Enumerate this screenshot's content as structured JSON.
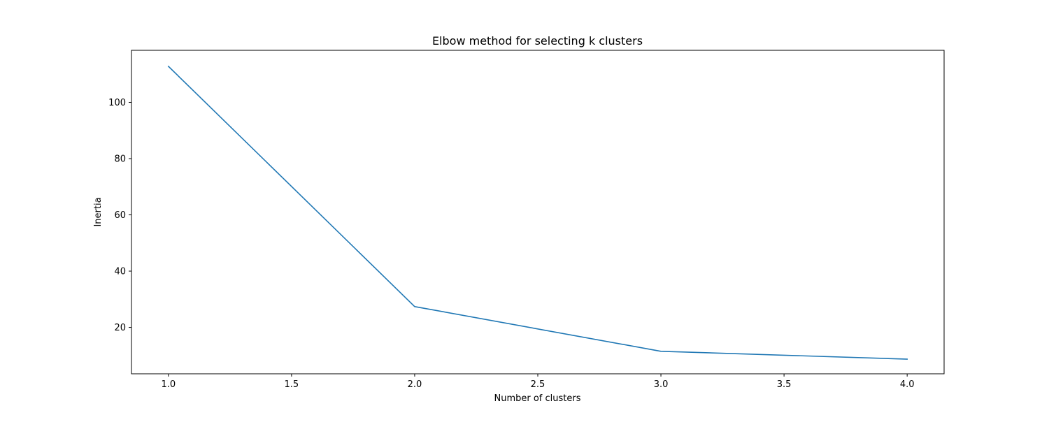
{
  "chart_data": {
    "type": "line",
    "title": "Elbow method for selecting k clusters",
    "xlabel": "Number of clusters",
    "ylabel": "Inertia",
    "x": [
      1,
      2,
      3,
      4
    ],
    "series": [
      {
        "values": [
          112.8,
          27.4,
          11.5,
          8.7
        ]
      }
    ],
    "xlim": [
      0.85,
      4.15
    ],
    "ylim": [
      3.5,
      118.5
    ],
    "xticks": [
      "1.0",
      "1.5",
      "2.0",
      "2.5",
      "3.0",
      "3.5",
      "4.0"
    ],
    "yticks": [
      "20",
      "40",
      "60",
      "80",
      "100"
    ],
    "line_color": "#1f77b4",
    "grid": false,
    "legend": false
  }
}
